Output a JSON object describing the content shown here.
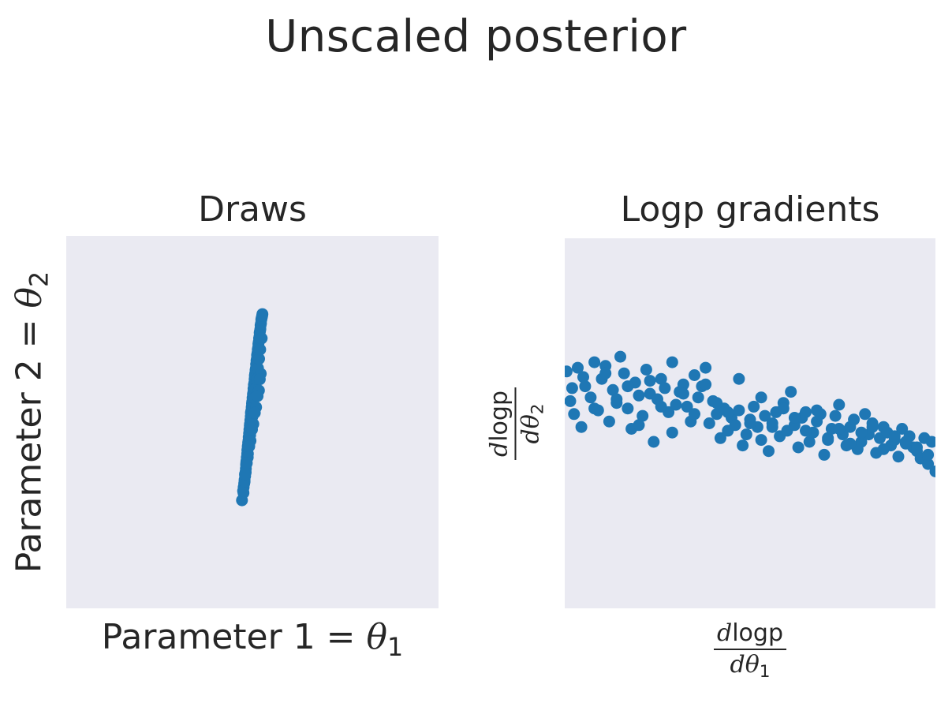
{
  "figure": {
    "suptitle": "Unscaled posterior"
  },
  "colors": {
    "axes_background": "#eaeaf2",
    "marker": "#1f77b4",
    "text": "#262626"
  },
  "panels": {
    "left": {
      "title": "Draws",
      "xlabel_prefix": "Parameter 1 = ",
      "xlabel_symbol": "θ",
      "xlabel_subscript": "1",
      "ylabel_prefix": "Parameter 2 = ",
      "ylabel_symbol": "θ",
      "ylabel_subscript": "2"
    },
    "right": {
      "title": "Logp gradients",
      "xlabel_numerator_d": "d",
      "xlabel_numerator_text": "logp",
      "xlabel_denominator_d": "d",
      "xlabel_denominator_symbol": "θ",
      "xlabel_denominator_subscript": "1",
      "ylabel_numerator_d": "d",
      "ylabel_numerator_text": "logp",
      "ylabel_denominator_d": "d",
      "ylabel_denominator_symbol": "θ",
      "ylabel_denominator_subscript": "2"
    }
  },
  "chart_data": [
    {
      "type": "scatter",
      "title": "Draws",
      "xlabel": "Parameter 1 = θ1",
      "ylabel": "Parameter 2 = θ2",
      "xlim": [
        -1,
        1
      ],
      "ylim": [
        -1,
        1
      ],
      "grid": false,
      "ticks": false,
      "marker_color": "#1f77b4",
      "series": [
        {
          "x": [
            -0.056,
            -0.048,
            -0.047,
            -0.044,
            -0.042,
            -0.039,
            -0.037,
            -0.035,
            -0.034,
            -0.032,
            -0.03,
            -0.028,
            -0.027,
            -0.025,
            -0.023,
            -0.021,
            -0.02,
            -0.018,
            -0.016,
            -0.014,
            -0.013,
            -0.011,
            -0.009,
            -0.008,
            -0.006,
            -0.004,
            -0.002,
            -0.001,
            0.001,
            0.003,
            0.005,
            0.006,
            0.008,
            0.01,
            0.012,
            0.013,
            0.015,
            0.017,
            0.019,
            0.02,
            0.022,
            0.024,
            0.025,
            0.027,
            0.029,
            0.031,
            0.032,
            0.034,
            0.036,
            0.038,
            0.039,
            0.041,
            0.043,
            0.044,
            0.046,
            0.048,
            0.05,
            0.052,
            0.054,
            -0.05,
            -0.042,
            -0.036,
            -0.03,
            -0.024,
            -0.018,
            -0.012,
            -0.006,
            0,
            0.006,
            0.012,
            0.018,
            0.024,
            0.03,
            0.036,
            0.042,
            0.05,
            -0.04,
            -0.025,
            -0.01,
            0.005,
            0.02,
            0.035,
            0.045,
            -0.033,
            -0.017,
            -0.002,
            0.013,
            0.028,
            0.04
          ],
          "y": [
            -0.42,
            -0.38,
            -0.35,
            -0.33,
            -0.31,
            -0.29,
            -0.27,
            -0.25,
            -0.23,
            -0.21,
            -0.19,
            -0.17,
            -0.15,
            -0.13,
            -0.11,
            -0.1,
            -0.08,
            -0.06,
            -0.04,
            -0.02,
            -0.01,
            0.01,
            0.03,
            0.05,
            0.06,
            0.08,
            0.1,
            0.11,
            0.13,
            0.15,
            0.16,
            0.18,
            0.2,
            0.21,
            0.23,
            0.25,
            0.26,
            0.28,
            0.29,
            0.31,
            0.33,
            0.34,
            0.36,
            0.37,
            0.39,
            0.4,
            0.42,
            0.43,
            0.45,
            0.46,
            0.48,
            0.49,
            0.5,
            0.52,
            0.53,
            0.55,
            0.56,
            0.57,
            0.58,
            -0.37,
            -0.32,
            -0.27,
            -0.22,
            -0.17,
            -0.12,
            -0.07,
            -0.02,
            0.03,
            0.08,
            0.13,
            0.18,
            0.23,
            0.29,
            0.34,
            0.39,
            0.45,
            -0.28,
            -0.19,
            -0.1,
            -0.01,
            0.08,
            0.17,
            0.26,
            -0.22,
            -0.13,
            -0.04,
            0.05,
            0.14,
            0.23
          ]
        }
      ]
    },
    {
      "type": "scatter",
      "title": "Logp gradients",
      "xlabel": "dlogp/dθ1",
      "ylabel": "dlogp/dθ2",
      "xlim": [
        -1,
        1
      ],
      "ylim": [
        -1,
        1
      ],
      "grid": false,
      "ticks": false,
      "marker_color": "#1f77b4",
      "series": [
        {
          "x": [
            -0.99,
            -0.97,
            -0.95,
            -0.93,
            -0.91,
            -0.89,
            -0.86,
            -0.84,
            -0.82,
            -0.8,
            -0.78,
            -0.76,
            -0.74,
            -0.72,
            -0.7,
            -0.68,
            -0.66,
            -0.64,
            -0.62,
            -0.6,
            -0.58,
            -0.56,
            -0.54,
            -0.52,
            -0.5,
            -0.48,
            -0.46,
            -0.44,
            -0.42,
            -0.4,
            -0.38,
            -0.36,
            -0.34,
            -0.32,
            -0.3,
            -0.28,
            -0.26,
            -0.24,
            -0.22,
            -0.2,
            -0.18,
            -0.16,
            -0.14,
            -0.12,
            -0.1,
            -0.08,
            -0.06,
            -0.04,
            -0.02,
            0,
            0.02,
            0.04,
            0.06,
            0.08,
            0.1,
            0.12,
            0.14,
            0.16,
            0.18,
            0.2,
            0.22,
            0.24,
            0.26,
            0.28,
            0.3,
            0.32,
            0.34,
            0.36,
            0.38,
            0.4,
            0.42,
            0.44,
            0.46,
            0.48,
            0.5,
            0.52,
            0.54,
            0.56,
            0.58,
            0.6,
            0.62,
            0.64,
            0.66,
            0.68,
            0.7,
            0.72,
            0.74,
            0.76,
            0.78,
            0.8,
            0.82,
            0.84,
            0.86,
            0.88,
            0.9,
            0.92,
            0.94,
            0.96,
            0.98,
            1.0,
            -0.96,
            -0.9,
            -0.84,
            -0.78,
            -0.72,
            -0.66,
            -0.6,
            -0.54,
            -0.48,
            -0.42,
            -0.36,
            -0.3,
            -0.24,
            -0.18,
            -0.12,
            -0.06,
            0.0,
            0.06,
            0.12,
            0.18,
            0.24,
            0.3,
            0.36,
            0.42,
            0.48,
            0.54,
            0.6,
            0.66,
            0.72,
            0.78,
            0.84,
            0.9,
            0.96
          ],
          "y": [
            0.28,
            0.12,
            0.05,
            0.3,
            -0.02,
            0.2,
            0.14,
            0.33,
            0.07,
            0.24,
            0.31,
            0.01,
            0.18,
            0.11,
            0.36,
            0.27,
            0.08,
            -0.03,
            0.22,
            0.15,
            0.04,
            0.29,
            0.16,
            -0.1,
            0.13,
            0.24,
            0.19,
            0.06,
            -0.05,
            0.1,
            0.17,
            0.21,
            0.09,
            0.01,
            0.26,
            0.14,
            0.2,
            0.3,
            0.0,
            0.12,
            0.05,
            -0.08,
            0.08,
            -0.04,
            0.03,
            -0.01,
            0.07,
            -0.12,
            -0.06,
            0.02,
            0.09,
            -0.02,
            -0.09,
            0.04,
            -0.15,
            0.0,
            0.06,
            -0.07,
            0.11,
            -0.04,
            0.17,
            -0.01,
            -0.13,
            0.03,
            0.06,
            -0.1,
            -0.05,
            0.01,
            0.05,
            -0.17,
            -0.08,
            -0.03,
            0.04,
            0.1,
            -0.06,
            -0.12,
            -0.02,
            0.02,
            -0.14,
            -0.1,
            0.05,
            -0.06,
            0.0,
            -0.16,
            -0.08,
            -0.02,
            -0.05,
            -0.12,
            -0.09,
            -0.18,
            -0.03,
            -0.11,
            -0.07,
            -0.13,
            -0.15,
            -0.19,
            -0.08,
            -0.22,
            -0.1,
            -0.26,
            0.19,
            0.25,
            0.08,
            0.27,
            0.13,
            0.2,
            -0.01,
            0.23,
            0.09,
            0.33,
            0.16,
            0.05,
            0.21,
            0.11,
            0.06,
            0.24,
            0.0,
            0.14,
            -0.02,
            0.08,
            0.03,
            -0.04,
            0.07,
            -0.09,
            -0.03,
            -0.11,
            -0.05,
            -0.02,
            -0.14,
            -0.07,
            -0.1,
            -0.13,
            -0.17
          ]
        }
      ]
    }
  ]
}
